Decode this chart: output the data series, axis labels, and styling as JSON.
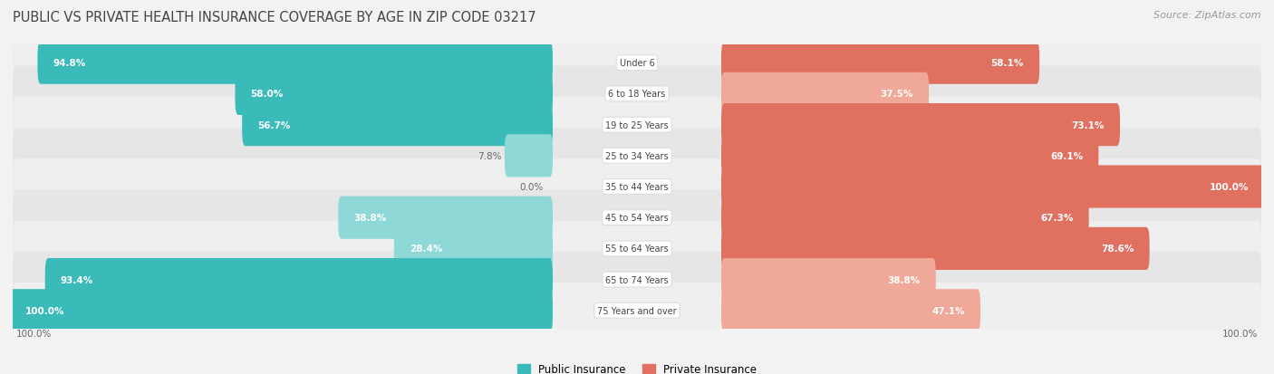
{
  "title": "PUBLIC VS PRIVATE HEALTH INSURANCE COVERAGE BY AGE IN ZIP CODE 03217",
  "source": "Source: ZipAtlas.com",
  "categories": [
    "Under 6",
    "6 to 18 Years",
    "19 to 25 Years",
    "25 to 34 Years",
    "35 to 44 Years",
    "45 to 54 Years",
    "55 to 64 Years",
    "65 to 74 Years",
    "75 Years and over"
  ],
  "public_values": [
    94.8,
    58.0,
    56.7,
    7.8,
    0.0,
    38.8,
    28.4,
    93.4,
    100.0
  ],
  "private_values": [
    58.1,
    37.5,
    73.1,
    69.1,
    100.0,
    67.3,
    78.6,
    38.8,
    47.1
  ],
  "public_color_dark": "#3BBABA",
  "public_color_light": "#8ED8D8",
  "private_color_dark": "#E07060",
  "private_color_light": "#F0A898",
  "bg_color": "#F2F2F2",
  "row_bg_even": "#EFEFEF",
  "row_bg_odd": "#E8E8E8",
  "title_color": "#444444",
  "source_color": "#999999",
  "label_inside_color": "#FFFFFF",
  "label_outside_color": "#666666",
  "max_value": 100.0,
  "legend_public": "Public Insurance",
  "legend_private": "Private Insurance",
  "inside_threshold": 20.0
}
